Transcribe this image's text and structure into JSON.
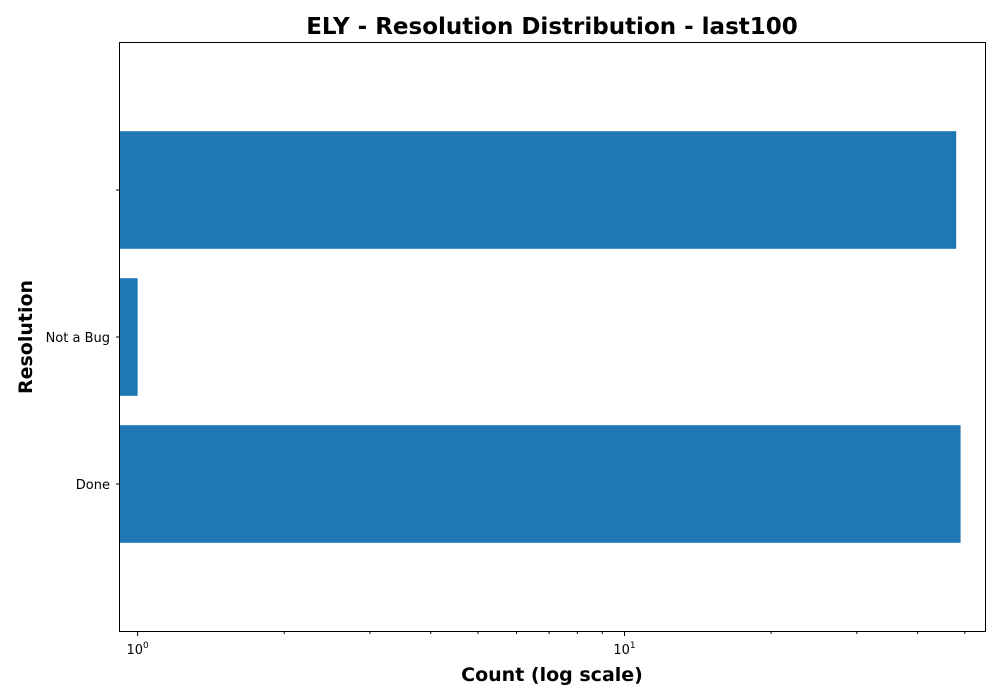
{
  "chart_data": {
    "type": "bar",
    "orientation": "horizontal",
    "title": "ELY - Resolution Distribution - last100",
    "xlabel": "Count (log scale)",
    "ylabel": "Resolution",
    "x_scale": "log",
    "xlim": [
      0.92,
      55
    ],
    "categories": [
      "Done",
      "Not a Bug",
      ""
    ],
    "values": [
      49,
      1,
      48
    ],
    "x_ticks": [
      {
        "value": 1,
        "base": "10",
        "exponent": "0"
      },
      {
        "value": 10,
        "base": "10",
        "exponent": "1"
      }
    ],
    "bar_color": "#1f77b4",
    "grid": false,
    "legend": "none"
  }
}
